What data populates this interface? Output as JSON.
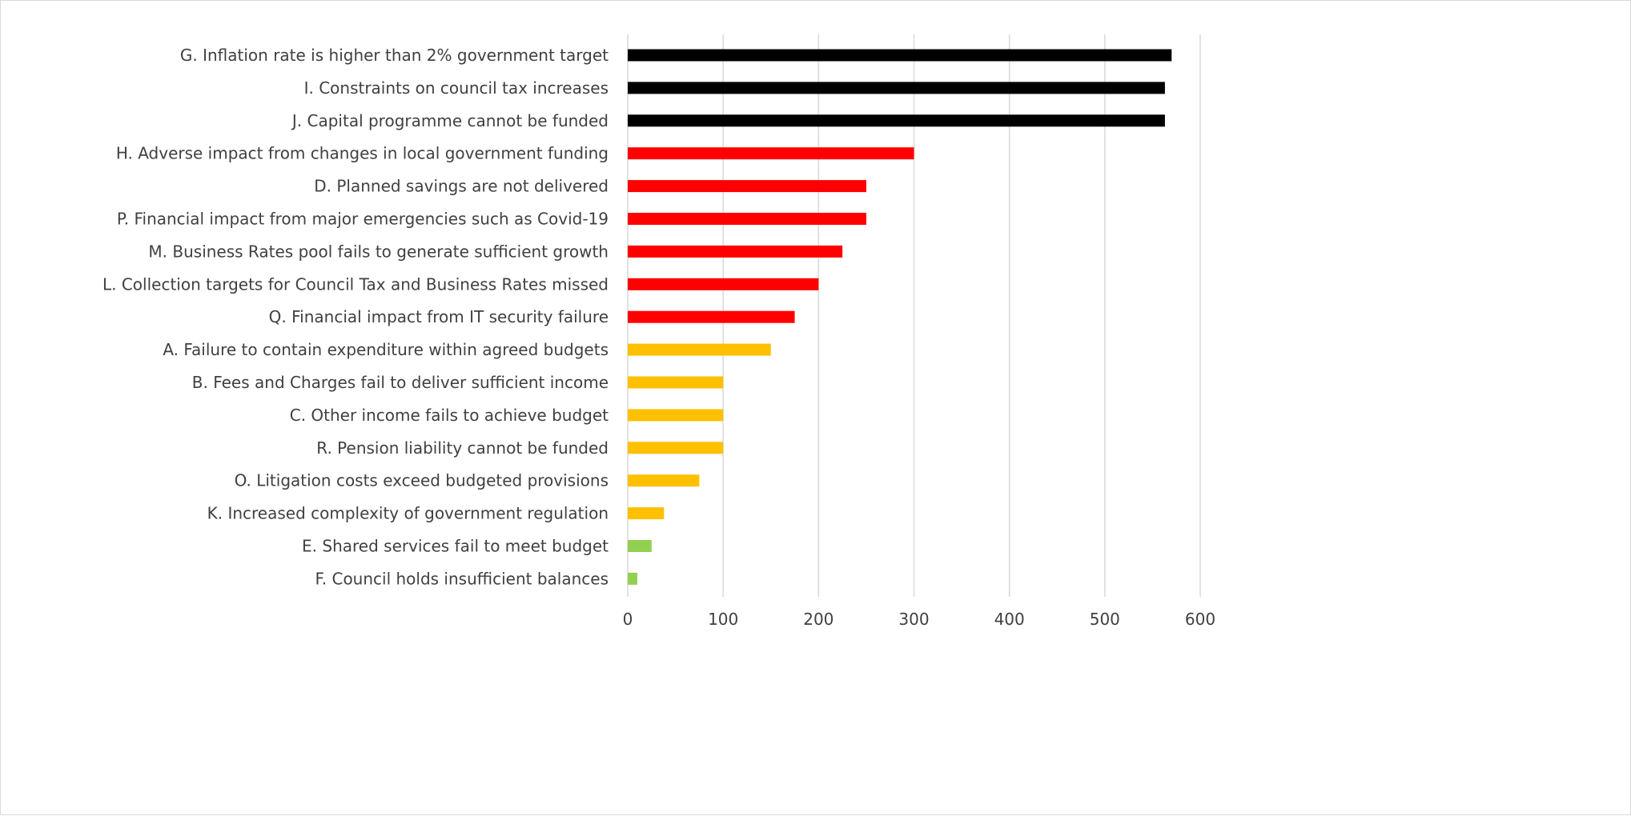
{
  "chart_data": {
    "type": "bar",
    "orientation": "horizontal",
    "title": "",
    "xlabel": "",
    "ylabel": "",
    "xlim": [
      0,
      600
    ],
    "x_ticks": [
      0,
      100,
      200,
      300,
      400,
      500,
      600
    ],
    "grid": true,
    "legend": "none",
    "categories": [
      "G. Inflation rate is higher than 2% government target",
      "I. Constraints on council tax increases",
      "J. Capital programme cannot be funded",
      "H. Adverse impact from changes in local government funding",
      "D. Planned savings are not delivered",
      "P. Financial impact from major emergencies such as Covid-19",
      "M. Business Rates pool fails to generate sufficient growth",
      "L. Collection targets for Council Tax and Business Rates missed",
      "Q. Financial impact from IT security failure",
      "A. Failure to contain expenditure within agreed budgets",
      "B. Fees and Charges fail to deliver sufficient income",
      "C. Other income fails to achieve budget",
      "R. Pension liability cannot be funded",
      "O. Litigation costs exceed budgeted provisions",
      "K. Increased complexity of government regulation",
      "E. Shared services fail to meet budget",
      "F. Council holds insufficient balances"
    ],
    "values": [
      570,
      563,
      563,
      300,
      250,
      250,
      225,
      200,
      175,
      150,
      100,
      100,
      100,
      75,
      38,
      25,
      10
    ],
    "bar_colors": [
      "#000000",
      "#000000",
      "#000000",
      "#ff0000",
      "#ff0000",
      "#ff0000",
      "#ff0000",
      "#ff0000",
      "#ff0000",
      "#ffc000",
      "#ffc000",
      "#ffc000",
      "#ffc000",
      "#ffc000",
      "#ffc000",
      "#92d050",
      "#92d050"
    ]
  }
}
